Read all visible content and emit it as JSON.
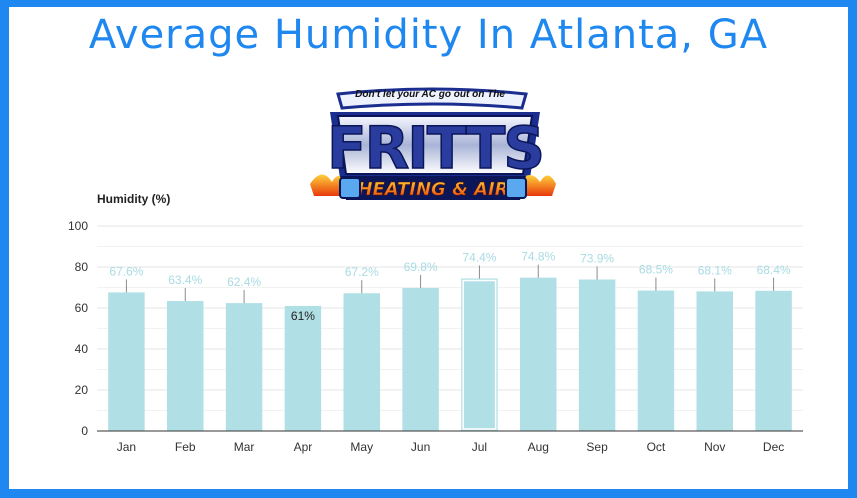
{
  "page": {
    "title": "Average Humidity In Atlanta, GA"
  },
  "logo": {
    "tagline": "Don't let your AC go out on The",
    "brand": "FRITTS",
    "subbrand": "HEATING & AIR"
  },
  "colors": {
    "frame": "#1e88f0",
    "title": "#1e88f0",
    "bar": "#b0e0e6",
    "bar_label": "#a8dbe3",
    "gridline": "#e6e6e6",
    "axis": "#333333"
  },
  "chart_data": {
    "type": "bar",
    "ylabel": "Humidity (%)",
    "xlabel": "",
    "categories": [
      "Jan",
      "Feb",
      "Mar",
      "Apr",
      "May",
      "Jun",
      "Jul",
      "Aug",
      "Sep",
      "Oct",
      "Nov",
      "Dec"
    ],
    "values": [
      67.6,
      63.4,
      62.4,
      61,
      67.2,
      69.8,
      74.4,
      74.8,
      73.9,
      68.5,
      68.1,
      68.4
    ],
    "data_labels": [
      "67.6%",
      "63.4%",
      "62.4%",
      "61%",
      "67.2%",
      "69.8%",
      "74.4%",
      "74.8%",
      "73.9%",
      "68.5%",
      "68.1%",
      "68.4%"
    ],
    "ylim": [
      0,
      100
    ],
    "yticks": [
      0,
      20,
      40,
      60,
      80,
      100
    ],
    "grid": true,
    "highlighted_category": "Jul"
  }
}
